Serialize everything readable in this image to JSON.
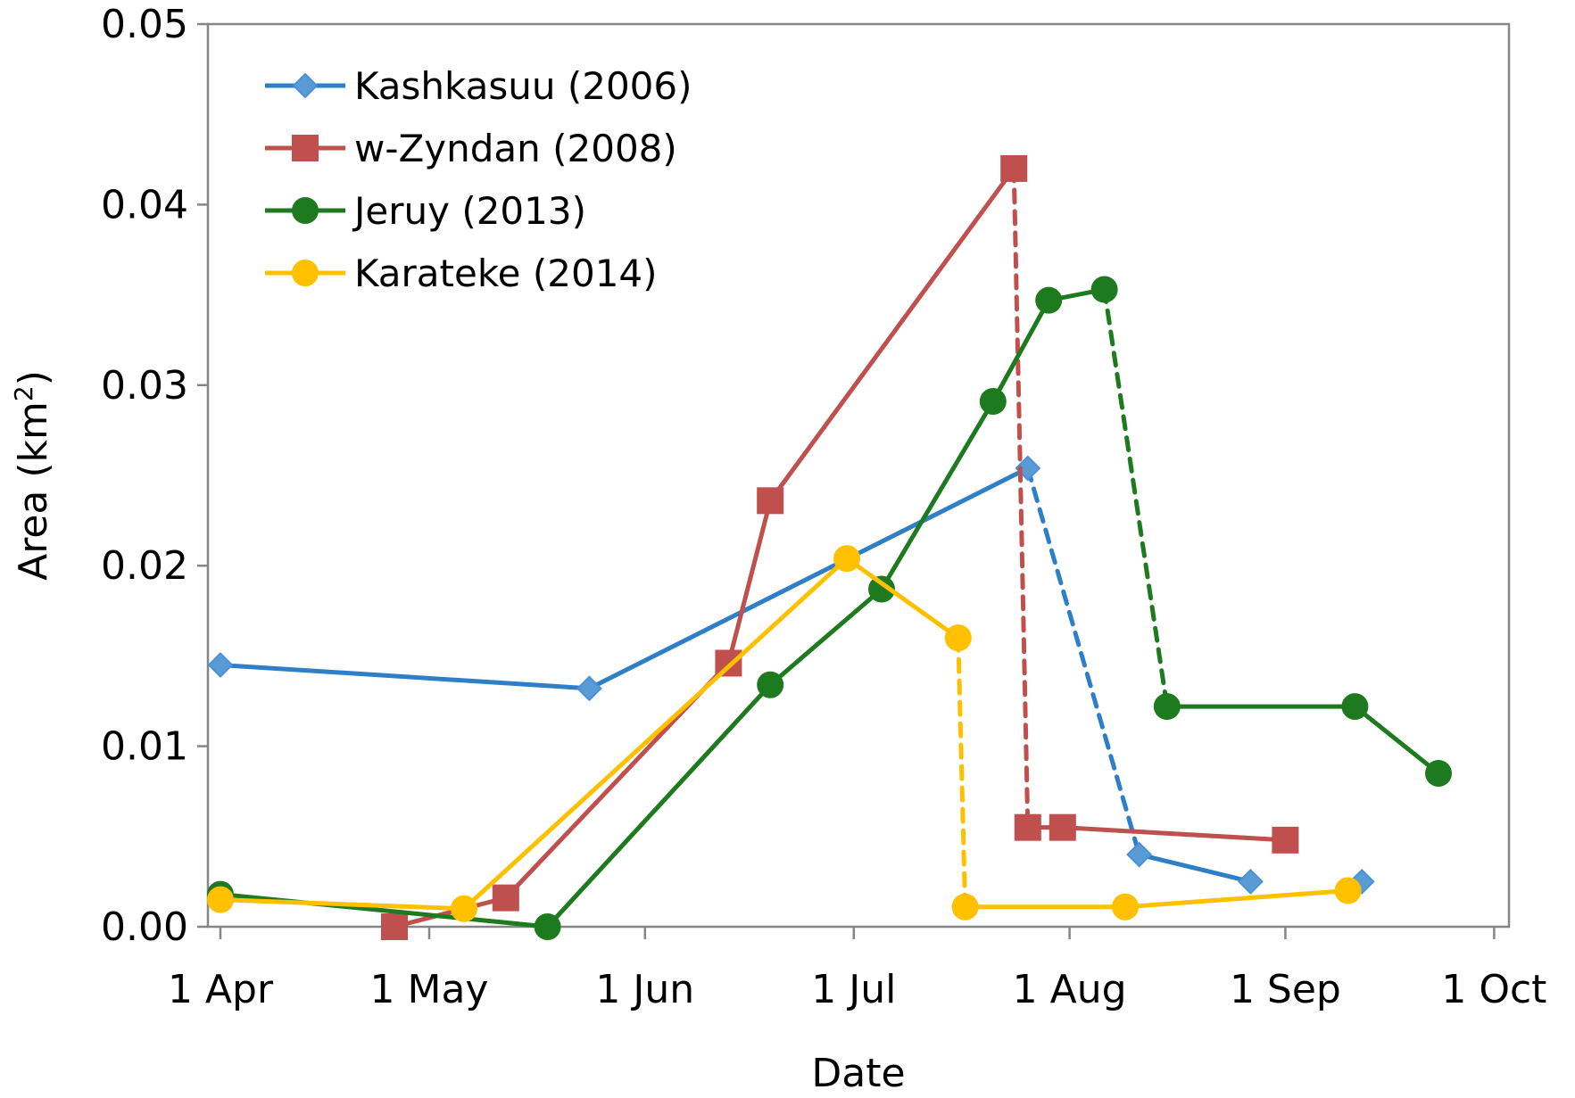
{
  "chart_data": {
    "type": "line",
    "xlabel": "Date",
    "ylabel": "Area (km²)",
    "ylabel_main": "Area (km",
    "ylabel_sup": "2",
    "ylabel_end": ")",
    "x_range": [
      "04-01",
      "10-01"
    ],
    "ylim": [
      0,
      0.05
    ],
    "y_ticks": [
      "0.00",
      "0.01",
      "0.02",
      "0.03",
      "0.04",
      "0.05"
    ],
    "x_ticks": [
      "1 Apr",
      "1 May",
      "1 Jun",
      "1 Jul",
      "1 Aug",
      "1 Sep",
      "1 Oct"
    ],
    "grid": false,
    "legend_position": "top-left",
    "series": [
      {
        "name": "Kashkasuu (2006)",
        "color": "#2E7FC8",
        "marker": "diamond",
        "points": [
          {
            "date": "04-01",
            "y": 0.0145
          },
          {
            "date": "05-24",
            "y": 0.0132
          },
          {
            "date": "07-26",
            "y": 0.0254,
            "dash_after": true
          },
          {
            "date": "08-11",
            "y": 0.004
          },
          {
            "date": "08-27",
            "y": 0.0025
          },
          {
            "date": "09-12",
            "y": 0.0025,
            "isolated": true
          }
        ]
      },
      {
        "name": "w-Zyndan (2008)",
        "color": "#C0504D",
        "marker": "square",
        "points": [
          {
            "date": "04-26",
            "y": 0.0
          },
          {
            "date": "05-12",
            "y": 0.0016
          },
          {
            "date": "06-13",
            "y": 0.0146
          },
          {
            "date": "06-19",
            "y": 0.0236
          },
          {
            "date": "07-24",
            "y": 0.042,
            "dash_after": true
          },
          {
            "date": "07-26",
            "y": 0.0055
          },
          {
            "date": "07-31",
            "y": 0.0055
          },
          {
            "date": "09-01",
            "y": 0.0048
          }
        ]
      },
      {
        "name": "Jeruy (2013)",
        "color": "#1E7A1E",
        "marker": "circle",
        "points": [
          {
            "date": "04-01",
            "y": 0.0018
          },
          {
            "date": "05-18",
            "y": 0.0
          },
          {
            "date": "06-19",
            "y": 0.0134
          },
          {
            "date": "07-05",
            "y": 0.0187
          },
          {
            "date": "07-21",
            "y": 0.0291
          },
          {
            "date": "07-29",
            "y": 0.0347
          },
          {
            "date": "08-06",
            "y": 0.0353,
            "dash_after": true
          },
          {
            "date": "08-15",
            "y": 0.0122
          },
          {
            "date": "09-11",
            "y": 0.0122
          },
          {
            "date": "09-23",
            "y": 0.0085
          }
        ]
      },
      {
        "name": "Karateke (2014)",
        "color": "#FFC000",
        "marker": "circle",
        "points": [
          {
            "date": "04-01",
            "y": 0.0015
          },
          {
            "date": "05-06",
            "y": 0.001
          },
          {
            "date": "06-30",
            "y": 0.0204
          },
          {
            "date": "07-16",
            "y": 0.016,
            "dash_after": true
          },
          {
            "date": "07-17",
            "y": 0.0011
          },
          {
            "date": "08-09",
            "y": 0.0011
          },
          {
            "date": "09-10",
            "y": 0.002
          }
        ]
      }
    ]
  }
}
